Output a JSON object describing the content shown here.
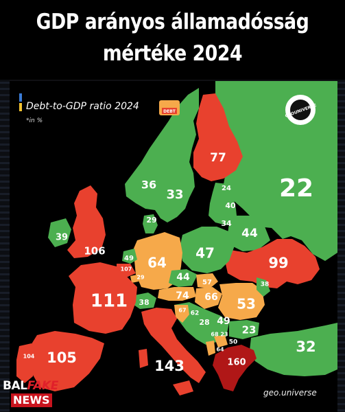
{
  "header": {
    "line1": "GDP arányos államadósság",
    "line2": "mértéke 2024"
  },
  "legend": {
    "title": "Debt-to-GDP ratio 2024",
    "unit": "*in %",
    "badge": "DEBT"
  },
  "logo": {
    "text": "GEOUNIVERSE"
  },
  "credit": "geo.universe",
  "watermark": {
    "top_prefix": "BAL",
    "top_accent": "FAKE",
    "bottom": "NEWS"
  },
  "colors": {
    "green": "#4caf50",
    "orange": "#f6a94a",
    "red": "#e8412e",
    "darkred": "#b01717",
    "sea": "#000000"
  },
  "map_values": [
    {
      "id": "russia",
      "value": "22"
    },
    {
      "id": "finland",
      "value": "77"
    },
    {
      "id": "norway",
      "value": "36"
    },
    {
      "id": "sweden",
      "value": "33"
    },
    {
      "id": "estonia",
      "value": "24"
    },
    {
      "id": "latvia",
      "value": "40"
    },
    {
      "id": "lithuania",
      "value": "34"
    },
    {
      "id": "denmark",
      "value": "29"
    },
    {
      "id": "belarus",
      "value": "44"
    },
    {
      "id": "ireland",
      "value": "39"
    },
    {
      "id": "uk",
      "value": "106"
    },
    {
      "id": "netherlands",
      "value": "49"
    },
    {
      "id": "belgium",
      "value": "107"
    },
    {
      "id": "luxembourg",
      "value": "29"
    },
    {
      "id": "germany",
      "value": "64"
    },
    {
      "id": "poland",
      "value": "47"
    },
    {
      "id": "ukraine",
      "value": "99"
    },
    {
      "id": "czechia",
      "value": "44"
    },
    {
      "id": "slovakia",
      "value": "57"
    },
    {
      "id": "moldova",
      "value": "38"
    },
    {
      "id": "france",
      "value": "111"
    },
    {
      "id": "switzerland",
      "value": "38"
    },
    {
      "id": "austria",
      "value": "74"
    },
    {
      "id": "hungary",
      "value": "66"
    },
    {
      "id": "romania",
      "value": "53"
    },
    {
      "id": "slovenia",
      "value": "67"
    },
    {
      "id": "croatia",
      "value": "62"
    },
    {
      "id": "bosnia",
      "value": "28"
    },
    {
      "id": "serbia",
      "value": "49"
    },
    {
      "id": "montenegro",
      "value": "68"
    },
    {
      "id": "kosovo",
      "value": "23"
    },
    {
      "id": "bulgaria",
      "value": "23"
    },
    {
      "id": "north_macedonia",
      "value": "50"
    },
    {
      "id": "albania",
      "value": "64"
    },
    {
      "id": "portugal",
      "value": "104"
    },
    {
      "id": "spain",
      "value": "105"
    },
    {
      "id": "italy",
      "value": "143"
    },
    {
      "id": "greece",
      "value": "160"
    },
    {
      "id": "turkey",
      "value": "32"
    }
  ]
}
